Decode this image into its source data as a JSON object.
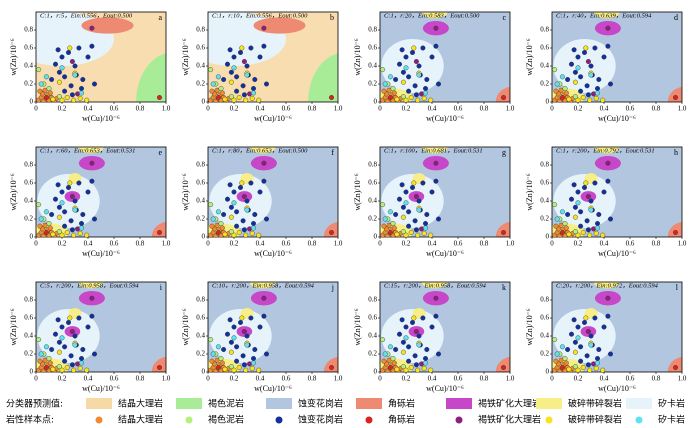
{
  "chart_data": [
    {
      "type": "scatter",
      "title": "C:1，r:5，Ein:0.556，Eout:0.500",
      "panel": "a",
      "background": "#f7ddb0",
      "xlabel": "w(Cu)/10⁻⁶",
      "ylabel": "w(Zn)/10⁻⁶",
      "xlim": [
        0,
        1
      ],
      "ylim": [
        0,
        1
      ],
      "xticks": [
        0,
        0.2,
        0.4,
        0.6,
        0.8,
        {
          "value": 1,
          "label": "1.0"
        }
      ],
      "yticks": [
        0,
        0.2,
        0.4,
        0.6,
        0.8
      ]
    },
    {
      "type": "scatter",
      "title": "C:1，r:10，Ein:0.556，Eout:0.500",
      "panel": "b",
      "background": "#f7ddb0",
      "xlabel": "w(Cu)/10⁻⁶",
      "ylabel": "w(Zn)/10⁻⁶",
      "xlim": [
        0,
        1
      ],
      "ylim": [
        0,
        1
      ],
      "xticks": [
        0,
        0.2,
        0.4,
        0.6,
        0.8,
        {
          "value": 1,
          "label": "1.0"
        }
      ],
      "yticks": [
        0,
        0.2,
        0.4,
        0.6,
        0.8
      ]
    },
    {
      "type": "scatter",
      "title": "C:1，r:20，Ein:0.583，Eout:0.500",
      "panel": "c",
      "background": "#b3c6e0",
      "xlabel": "w(Cu)/10⁻⁶",
      "ylabel": "w(Zn)/10⁻⁶",
      "xlim": [
        0,
        1
      ],
      "ylim": [
        0,
        1
      ],
      "xticks": [
        0,
        0.2,
        0.4,
        0.6,
        0.8,
        {
          "value": 1,
          "label": "1.0"
        }
      ],
      "yticks": [
        0,
        0.2,
        0.4,
        0.6,
        0.8
      ]
    },
    {
      "type": "scatter",
      "title": "C:1，r:40，Ein:0.639，Eout:0.594",
      "panel": "d",
      "background": "#b3c6e0",
      "xlabel": "w(Cu)/10⁻⁶",
      "ylabel": "w(Zn)/10⁻⁶",
      "xlim": [
        0,
        1
      ],
      "ylim": [
        0,
        1
      ],
      "xticks": [
        0,
        0.2,
        0.4,
        0.6,
        0.8,
        {
          "value": 1,
          "label": "1.0"
        }
      ],
      "yticks": [
        0,
        0.2,
        0.4,
        0.6,
        0.8
      ]
    },
    {
      "type": "scatter",
      "title": "C:1，r:60，Ein:0.653，Eout:0.531",
      "panel": "e",
      "background": "#b3c6e0",
      "xlabel": "w(Cu)/10⁻⁶",
      "ylabel": "w(Zn)/10⁻⁶",
      "xlim": [
        0,
        1
      ],
      "ylim": [
        0,
        1
      ],
      "xticks": [
        0,
        0.2,
        0.4,
        0.6,
        0.8,
        {
          "value": 1,
          "label": "1.0"
        }
      ],
      "yticks": [
        0,
        0.2,
        0.4,
        0.6,
        0.8
      ]
    },
    {
      "type": "scatter",
      "title": "C:1，r:80，Ein:0.653，Eout:0.500",
      "panel": "f",
      "background": "#b3c6e0",
      "xlabel": "w(Cu)/10⁻⁶",
      "ylabel": "w(Zn)/10⁻⁶",
      "xlim": [
        0,
        1
      ],
      "ylim": [
        0,
        1
      ],
      "xticks": [
        0,
        0.2,
        0.4,
        0.6,
        0.8,
        {
          "value": 1,
          "label": "1.0"
        }
      ],
      "yticks": [
        0,
        0.2,
        0.4,
        0.6,
        0.8
      ]
    },
    {
      "type": "scatter",
      "title": "C:1，r:100，Ein:0.681，Eout:0.531",
      "panel": "g",
      "background": "#b3c6e0",
      "xlabel": "w(Cu)/10⁻⁶",
      "ylabel": "w(Zn)/10⁻⁶",
      "xlim": [
        0,
        1
      ],
      "ylim": [
        0,
        1
      ],
      "xticks": [
        0,
        0.2,
        0.4,
        0.6,
        0.8,
        {
          "value": 1,
          "label": "1.0"
        }
      ],
      "yticks": [
        0,
        0.2,
        0.4,
        0.6,
        0.8
      ]
    },
    {
      "type": "scatter",
      "title": "C:1，r:200，Ein:0.792，Eout:0.531",
      "panel": "h",
      "background": "#b3c6e0",
      "xlabel": "w(Cu)/10⁻⁶",
      "ylabel": "w(Zn)/10⁻⁶",
      "xlim": [
        0,
        1
      ],
      "ylim": [
        0,
        1
      ],
      "xticks": [
        0,
        0.2,
        0.4,
        0.6,
        0.8,
        {
          "value": 1,
          "label": "1.0"
        }
      ],
      "yticks": [
        0,
        0.2,
        0.4,
        0.6,
        0.8
      ]
    },
    {
      "type": "scatter",
      "title": "C:5，r:200，Ein:0.958，Eout:0.594",
      "panel": "i",
      "background": "#b3c6e0",
      "xlabel": "w(Cu)/10⁻⁶",
      "ylabel": "w(Zn)/10⁻⁶",
      "xlim": [
        0,
        1
      ],
      "ylim": [
        0,
        1
      ],
      "xticks": [
        0,
        0.2,
        0.4,
        0.6,
        0.8,
        {
          "value": 1,
          "label": "1.0"
        }
      ],
      "yticks": [
        0,
        0.2,
        0.4,
        0.6,
        0.8
      ]
    },
    {
      "type": "scatter",
      "title": "C:10，r:200，Ein:0.958，Eout:0.594",
      "panel": "j",
      "background": "#b3c6e0",
      "xlabel": "w(Cu)/10⁻⁶",
      "ylabel": "w(Zn)/10⁻⁶",
      "xlim": [
        0,
        1
      ],
      "ylim": [
        0,
        1
      ],
      "xticks": [
        0,
        0.2,
        0.4,
        0.6,
        0.8,
        {
          "value": 1,
          "label": "1.0"
        }
      ],
      "yticks": [
        0,
        0.2,
        0.4,
        0.6,
        0.8
      ]
    },
    {
      "type": "scatter",
      "title": "C:15，r:200，Ein:0.958，Eout:0.594",
      "panel": "k",
      "background": "#b3c6e0",
      "xlabel": "w(Cu)/10⁻⁶",
      "ylabel": "w(Zn)/10⁻⁶",
      "xlim": [
        0,
        1
      ],
      "ylim": [
        0,
        1
      ],
      "xticks": [
        0,
        0.2,
        0.4,
        0.6,
        0.8,
        {
          "value": 1,
          "label": "1.0"
        }
      ],
      "yticks": [
        0,
        0.2,
        0.4,
        0.6,
        0.8
      ]
    },
    {
      "type": "scatter",
      "title": "C:20，r:200，Ein:0.972，Eout:0.594",
      "panel": "l",
      "background": "#b3c6e0",
      "xlabel": "w(Cu)/10⁻⁶",
      "ylabel": "w(Zn)/10⁻⁶",
      "xlim": [
        0,
        1
      ],
      "ylim": [
        0,
        1
      ],
      "xticks": [
        0,
        0.2,
        0.4,
        0.6,
        0.8,
        {
          "value": 1,
          "label": "1.0"
        }
      ],
      "yticks": [
        0,
        0.2,
        0.4,
        0.6,
        0.8
      ]
    }
  ],
  "legend": {
    "predicted_label": "分类器预测值:",
    "sample_label": "岩性样本点:",
    "predicted": [
      {
        "name": "结晶大理岩",
        "color": "#f7d9a6"
      },
      {
        "name": "褐色泥岩",
        "color": "#a8ec98"
      },
      {
        "name": "蚀变花岗岩",
        "color": "#b3c6e0"
      },
      {
        "name": "角砾岩",
        "color": "#ee8a72"
      },
      {
        "name": "褐铁矿化大理岩",
        "color": "#c648c8"
      },
      {
        "name": "破碎带碎裂岩",
        "color": "#f8ee88"
      },
      {
        "name": "矽卡岩",
        "color": "#e6f3fb"
      }
    ]
  },
  "samples": {
    "series": [
      {
        "name": "结晶大理岩",
        "color": "#f08a2e",
        "x": [
          0.02,
          0.04,
          0.06,
          0.08,
          0.1,
          0.12,
          0.14,
          0.05,
          0.09,
          0.03,
          0.07,
          0.11,
          0.16
        ],
        "y": [
          0.02,
          0.05,
          0.01,
          0.04,
          0.02,
          0.05,
          0.01,
          0.09,
          0.08,
          0.12,
          0.13,
          0.1,
          0.04
        ]
      },
      {
        "name": "褐色泥岩",
        "color": "#b4f07a",
        "x": [
          0.02,
          0.06,
          0.1,
          0.18
        ],
        "y": [
          0.36,
          0.2,
          0.15,
          0.06
        ]
      },
      {
        "name": "蚀变花岗岩",
        "color": "#12309e",
        "x": [
          0.12,
          0.15,
          0.18,
          0.2,
          0.22,
          0.25,
          0.27,
          0.3,
          0.33,
          0.36,
          0.4,
          0.43,
          0.22,
          0.28,
          0.35,
          0.45,
          0.17,
          0.31
        ],
        "y": [
          0.25,
          0.42,
          0.33,
          0.5,
          0.28,
          0.55,
          0.18,
          0.4,
          0.6,
          0.25,
          0.5,
          0.62,
          0.12,
          0.08,
          0.15,
          0.2,
          0.58,
          0.3
        ]
      },
      {
        "name": "角砾岩",
        "color": "#d8241f",
        "x": [
          0.08,
          0.95
        ],
        "y": [
          0.05,
          0.05
        ]
      },
      {
        "name": "褐铁矿化大理岩",
        "color": "#8e1e7e",
        "x": [
          0.43,
          0.28,
          0.32
        ],
        "y": [
          0.82,
          0.45,
          0.09
        ]
      },
      {
        "name": "破碎带碎裂岩",
        "color": "#f8e31c",
        "x": [
          0.13,
          0.2,
          0.24,
          0.29,
          0.34,
          0.39,
          0.18,
          0.26,
          0.3
        ],
        "y": [
          0.03,
          0.02,
          0.05,
          0.02,
          0.04,
          0.02,
          0.22,
          0.6,
          0.32
        ]
      },
      {
        "name": "矽卡岩",
        "color": "#5ee2f2",
        "x": [
          0.04,
          0.08,
          0.3,
          0.35,
          0.2
        ],
        "y": [
          0.2,
          0.28,
          0.3,
          0.1,
          0.38
        ]
      }
    ]
  }
}
